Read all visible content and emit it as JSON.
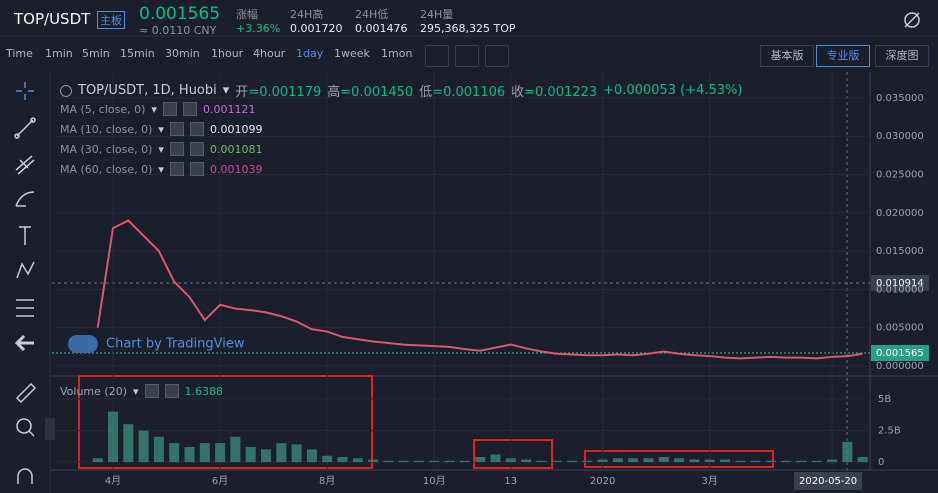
{
  "header": {
    "pair": "TOP/USDT",
    "board": "主板",
    "price": "0.001565",
    "cny": "≈ 0.0110 CNY",
    "stats": [
      {
        "label": "涨幅",
        "value": "+3.36%"
      },
      {
        "label": "24H高",
        "value": "0.001720"
      },
      {
        "label": "24H低",
        "value": "0.001476"
      },
      {
        "label": "24H量",
        "value": "295,368,325 TOP"
      }
    ]
  },
  "toolbar": {
    "intervals": [
      "Time",
      "1min",
      "5min",
      "15min",
      "30min",
      "1hour",
      "4hour",
      "1day",
      "1week",
      "1mon"
    ],
    "active": 7,
    "versions": [
      "基本版",
      "专业版",
      "深度图"
    ]
  },
  "legend": {
    "symbol": "TOP/USDT, 1D, Huobi",
    "ohlc": [
      {
        "label": "开",
        "value": "=0.001179"
      },
      {
        "label": "高",
        "value": "=0.001450"
      },
      {
        "label": "低",
        "value": "=0.001106"
      },
      {
        "label": "收",
        "value": "=0.001223"
      }
    ],
    "change": "+0.000053 (+4.53%)",
    "ma": [
      {
        "name": "MA (5, close, 0)",
        "value": "0.001121",
        "color": "#c46be0"
      },
      {
        "name": "MA (10, close, 0)",
        "value": "0.001099",
        "color": "#e8e8f0"
      },
      {
        "name": "MA (30, close, 0)",
        "value": "0.001081",
        "color": "#5fc95f"
      },
      {
        "name": "MA (60, close, 0)",
        "value": "0.001039",
        "color": "#d6409f"
      }
    ],
    "volume_name": "Volume (20)",
    "volume_value": "1.6388"
  },
  "watermark": "Chart by TradingView",
  "price_labels": {
    "crosshair": "0.010914",
    "last": "0.001565"
  },
  "chart_data": [
    {
      "type": "line",
      "color": "#d65a6c",
      "categories": [
        null,
        "4月",
        null,
        null,
        null,
        null,
        null,
        null,
        "6月",
        null,
        null,
        null,
        null,
        null,
        null,
        "8月",
        null,
        null,
        null,
        null,
        null,
        null,
        "10月",
        null,
        null,
        null,
        null,
        "13",
        null,
        null,
        null,
        null,
        null,
        "2020",
        null,
        null,
        null,
        null,
        null,
        null,
        "3月",
        null,
        null,
        null,
        null,
        null,
        null,
        null,
        "2020-05-20",
        null,
        null
      ],
      "values": [
        0.005,
        0.018,
        0.019,
        0.017,
        0.015,
        0.011,
        0.009,
        0.006,
        0.008,
        0.0075,
        0.0073,
        0.007,
        0.0065,
        0.0058,
        0.0048,
        0.0045,
        0.0038,
        0.0035,
        0.0032,
        0.003,
        0.0028,
        0.0027,
        0.0026,
        0.0025,
        0.0022,
        0.002,
        0.0024,
        0.0028,
        0.0023,
        0.0019,
        0.0016,
        0.0015,
        0.0014,
        0.0014,
        0.0015,
        0.0014,
        0.0016,
        0.0019,
        0.0016,
        0.0014,
        0.0013,
        0.0011,
        0.001,
        0.0011,
        0.0012,
        0.0011,
        0.0011,
        0.001,
        0.0012,
        0.0013,
        0.0016
      ],
      "ylim": [
        -0.00078,
        0.03734
      ],
      "yticks": [
        {
          "value": 0,
          "label": "0.000000"
        },
        {
          "value": 0.005,
          "label": "0.005000"
        },
        {
          "value": 0.01,
          "label": "0.010000"
        },
        {
          "value": 0.015,
          "label": "0.015000"
        },
        {
          "value": 0.02,
          "label": "0.020000"
        },
        {
          "value": 0.025,
          "label": "0.025000"
        },
        {
          "value": 0.03,
          "label": "0.030000"
        },
        {
          "value": 0.035,
          "label": "0.035000"
        }
      ]
    },
    {
      "type": "bar",
      "color": "#3b8a78",
      "values": [
        0.3,
        4,
        3,
        2.5,
        2,
        1.5,
        1.2,
        1.5,
        1.5,
        2,
        1.2,
        1,
        1.5,
        1.4,
        1,
        0.5,
        0.4,
        0.3,
        0.2,
        0.1,
        0.1,
        0.1,
        0.1,
        0.1,
        0.1,
        0.4,
        0.6,
        0.3,
        0.2,
        0.1,
        0.1,
        0.1,
        0.1,
        0.2,
        0.3,
        0.3,
        0.3,
        0.4,
        0.3,
        0.2,
        0.2,
        0.2,
        0.1,
        0.1,
        0.1,
        0.1,
        0.1,
        0.1,
        0.2,
        1.6,
        0.4
      ],
      "ylim": [
        -0.63,
        6.5
      ],
      "yticks": [
        0,
        {
          "value": 2.5,
          "label": "2.5B"
        },
        {
          "value": 5,
          "label": "5B"
        }
      ]
    }
  ]
}
